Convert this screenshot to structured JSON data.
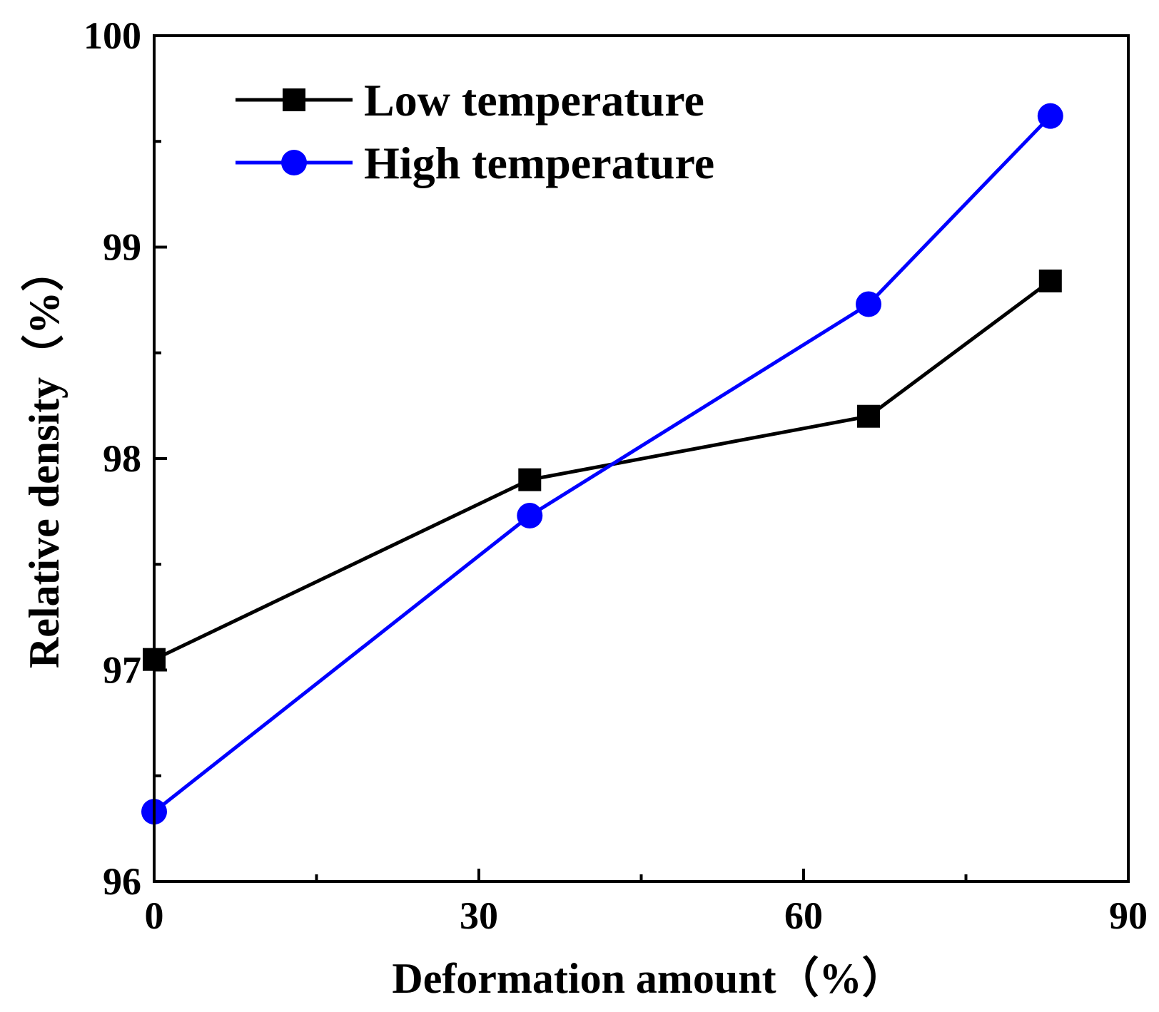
{
  "chart_data": {
    "type": "line",
    "title": "",
    "xlabel": "Deformation amount（%）",
    "ylabel": "Relative density（%）",
    "xlim": [
      0,
      90
    ],
    "ylim": [
      96,
      100
    ],
    "xticks": [
      0,
      30,
      60,
      90
    ],
    "xtick_labels": [
      "0",
      "30",
      "60",
      "90"
    ],
    "yticks": [
      96,
      97,
      98,
      99,
      100
    ],
    "ytick_labels": [
      "96",
      "97",
      "98",
      "99",
      "100"
    ],
    "x_minor_ticks": [
      15,
      45,
      75
    ],
    "y_minor_ticks": [
      96.5,
      97.5,
      98.5,
      99.5
    ],
    "grid": false,
    "legend_position": "top-left",
    "series": [
      {
        "name": "Low temperature",
        "marker": "square",
        "color": "#000000",
        "x": [
          0,
          34.7,
          66,
          82.8
        ],
        "y": [
          97.05,
          97.9,
          98.2,
          98.84
        ]
      },
      {
        "name": "High temperature",
        "marker": "circle",
        "color": "#0000ff",
        "x": [
          0,
          34.7,
          66,
          82.8
        ],
        "y": [
          96.33,
          97.73,
          98.73,
          99.62
        ]
      }
    ]
  }
}
